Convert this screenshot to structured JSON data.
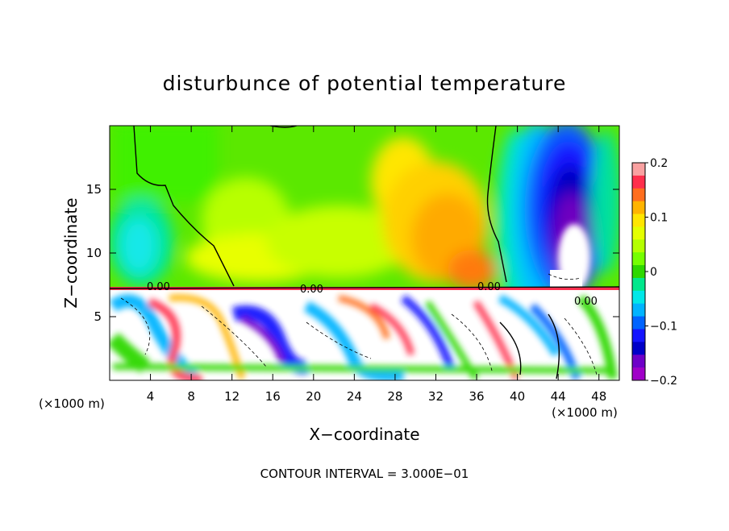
{
  "chart_data": {
    "type": "heatmap",
    "title": "disturbunce of potential temperature",
    "xlabel": "X−coordinate",
    "ylabel": "Z−coordinate",
    "x_unit": "(×1000 m)",
    "x_unit_right": "(×1000 m)",
    "xlim": [
      0,
      50
    ],
    "ylim": [
      0,
      20
    ],
    "x_ticks": [
      4,
      8,
      12,
      16,
      20,
      24,
      28,
      32,
      36,
      40,
      44,
      48
    ],
    "y_ticks": [
      5,
      10,
      15
    ],
    "colorbar": {
      "ticks": [
        0.2,
        0.1,
        0,
        -0.1,
        -0.2
      ],
      "tick_labels": [
        "0.2",
        "0.1",
        "0",
        "−0.1",
        "−0.2"
      ],
      "colors": [
        "#f9a1a1",
        "#ff2f4c",
        "#ff6e1e",
        "#ffb400",
        "#ffe600",
        "#e4ff00",
        "#b4ff00",
        "#75ff00",
        "#2dd800",
        "#00e88c",
        "#00e8e8",
        "#00b4ff",
        "#0064ff",
        "#1414ff",
        "#0000c8",
        "#6e00c8",
        "#a000c8"
      ]
    },
    "contour_label": "0.00",
    "footer": "CONTOUR INTERVAL = 3.000E−01"
  }
}
